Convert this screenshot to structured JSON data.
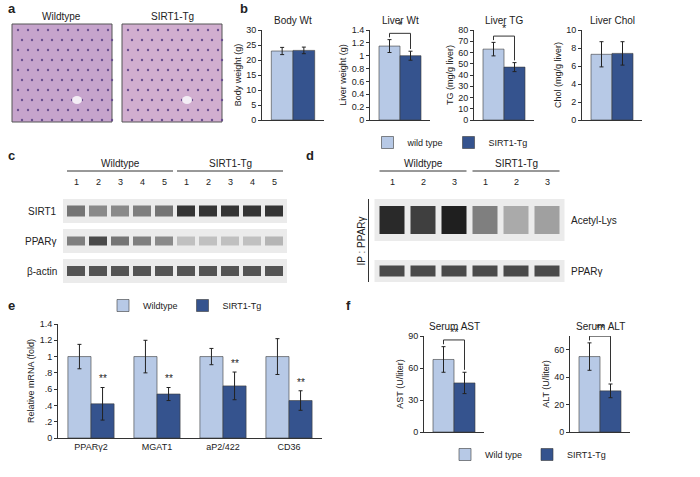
{
  "panel_labels": [
    "a",
    "b",
    "c",
    "d",
    "e",
    "f"
  ],
  "histology": {
    "images": [
      "Wildtype",
      "SIRT1-Tg"
    ]
  },
  "blot_c": {
    "groups": [
      {
        "label": "Wildtype",
        "lanes": [
          1,
          2,
          3,
          4,
          5
        ]
      },
      {
        "label": "SIRT1-Tg",
        "lanes": [
          1,
          2,
          3,
          4,
          5
        ]
      }
    ],
    "rows": [
      {
        "label": "SIRT1",
        "intensity": [
          0.55,
          0.45,
          0.45,
          0.5,
          0.55,
          0.85,
          0.85,
          0.85,
          0.85,
          0.85
        ]
      },
      {
        "label": "PPARγ",
        "intensity": [
          0.5,
          0.75,
          0.55,
          0.5,
          0.45,
          0.2,
          0.2,
          0.2,
          0.2,
          0.25
        ]
      },
      {
        "label": "β-actin",
        "intensity": [
          0.7,
          0.7,
          0.7,
          0.7,
          0.7,
          0.7,
          0.7,
          0.7,
          0.7,
          0.7
        ]
      }
    ]
  },
  "blot_d": {
    "ip_label": "IP : PPARγ",
    "groups": [
      {
        "label": "Wildtype",
        "lanes": [
          1,
          2,
          3
        ]
      },
      {
        "label": "SIRT1-Tg",
        "lanes": [
          1,
          2,
          3
        ]
      }
    ],
    "rows": [
      {
        "label": "Acetyl-Lys",
        "intensity": [
          0.9,
          0.8,
          0.95,
          0.5,
          0.3,
          0.35
        ]
      },
      {
        "label": "PPARγ",
        "intensity": [
          0.75,
          0.75,
          0.75,
          0.75,
          0.75,
          0.75
        ]
      }
    ]
  },
  "chart_data": [
    {
      "type": "bar",
      "title": "Body Wt",
      "ylabel": "Body weight (g)",
      "categories": [
        null
      ],
      "series": [
        {
          "name": "wild type",
          "color": "#b7c9e6",
          "values": [
            23
          ],
          "errors": [
            1.2
          ]
        },
        {
          "name": "SIRT1-Tg",
          "color": "#35538e",
          "values": [
            23.2
          ],
          "errors": [
            1.1
          ]
        }
      ],
      "ylim": [
        0,
        30
      ],
      "yticks": [
        0,
        5,
        10,
        15,
        20,
        25,
        30
      ],
      "tick_labels": "y",
      "legend": "bottom"
    },
    {
      "type": "bar",
      "title": "Liver Wt",
      "ylabel": "Liver weight (g)",
      "categories": [
        null
      ],
      "series": [
        {
          "name": "wild type",
          "color": "#b7c9e6",
          "values": [
            1.15
          ],
          "errors": [
            0.1
          ]
        },
        {
          "name": "SIRT1-Tg",
          "color": "#35538e",
          "values": [
            1.0
          ],
          "errors": [
            0.07
          ]
        }
      ],
      "ylim": [
        0,
        1.4
      ],
      "yticks": [
        0,
        0.2,
        0.4,
        0.6,
        0.8,
        1,
        1.2,
        1.4
      ],
      "tick_labels": "y",
      "significance": "*"
    },
    {
      "type": "bar",
      "title": "Liver TG",
      "ylabel": "TG (mg/g liver)",
      "categories": [
        null
      ],
      "series": [
        {
          "name": "wild type",
          "color": "#b7c9e6",
          "values": [
            63
          ],
          "errors": [
            6
          ]
        },
        {
          "name": "SIRT1-Tg",
          "color": "#35538e",
          "values": [
            47
          ],
          "errors": [
            4
          ]
        }
      ],
      "ylim": [
        0,
        80
      ],
      "yticks": [
        0,
        10,
        20,
        30,
        40,
        50,
        60,
        70,
        80
      ],
      "tick_labels": "y",
      "significance": "*"
    },
    {
      "type": "bar",
      "title": "Liver Chol",
      "ylabel": "Chol (mg/g liver)",
      "categories": [
        null
      ],
      "series": [
        {
          "name": "wild type",
          "color": "#b7c9e6",
          "values": [
            7.3
          ],
          "errors": [
            1.4
          ]
        },
        {
          "name": "SIRT1-Tg",
          "color": "#35538e",
          "values": [
            7.4
          ],
          "errors": [
            1.3
          ]
        }
      ],
      "ylim": [
        0,
        10
      ],
      "yticks": [
        0,
        2,
        4,
        6,
        8,
        10
      ],
      "tick_labels": "y"
    },
    {
      "type": "bar",
      "ylabel": "Relative mRNA (fold)",
      "categories": [
        "PPARγ2",
        "MGAT1",
        "aP2/422",
        "CD36"
      ],
      "series": [
        {
          "name": "Wildtype",
          "color": "#b7c9e6",
          "values": [
            1,
            1,
            1,
            1
          ],
          "errors": [
            0.15,
            0.2,
            0.1,
            0.22
          ]
        },
        {
          "name": "SIRT1-Tg",
          "color": "#35538e",
          "values": [
            0.42,
            0.54,
            0.64,
            0.46
          ],
          "errors": [
            0.2,
            0.08,
            0.17,
            0.12
          ]
        }
      ],
      "ylim": [
        0,
        1.4
      ],
      "yticks": [
        0,
        {
          "value": 0.2,
          "label": ".2"
        },
        {
          "value": 0.4,
          "label": ".4"
        },
        {
          "value": 0.6,
          "label": ".6"
        },
        {
          "value": 0.8,
          "label": ".8"
        },
        1,
        1.2,
        1.4
      ],
      "significance": [
        "**",
        "**",
        "**",
        "**"
      ],
      "legend": "top"
    },
    {
      "type": "bar",
      "title": "Serum AST",
      "ylabel": "AST (U/liter)",
      "categories": [
        null
      ],
      "series": [
        {
          "name": "Wild type",
          "color": "#b7c9e6",
          "values": [
            68
          ],
          "errors": [
            12
          ]
        },
        {
          "name": "SIRT1-Tg",
          "color": "#35538e",
          "values": [
            46
          ],
          "errors": [
            10
          ]
        }
      ],
      "ylim": [
        0,
        90
      ],
      "yticks": [
        0,
        30,
        60,
        90
      ],
      "tick_labels": "y",
      "significance": "**",
      "legend": "bottom"
    },
    {
      "type": "bar",
      "title": "Serum ALT",
      "ylabel": "ALT (U/liter)",
      "categories": [
        null
      ],
      "series": [
        {
          "name": "Wild type",
          "color": "#b7c9e6",
          "values": [
            55
          ],
          "errors": [
            10
          ]
        },
        {
          "name": "SIRT1-Tg",
          "color": "#35538e",
          "values": [
            30
          ],
          "errors": [
            5
          ]
        }
      ],
      "ylim": [
        0,
        70
      ],
      "yticks": [
        0,
        20,
        40,
        60
      ],
      "tick_labels": "y",
      "significance": "**"
    }
  ]
}
